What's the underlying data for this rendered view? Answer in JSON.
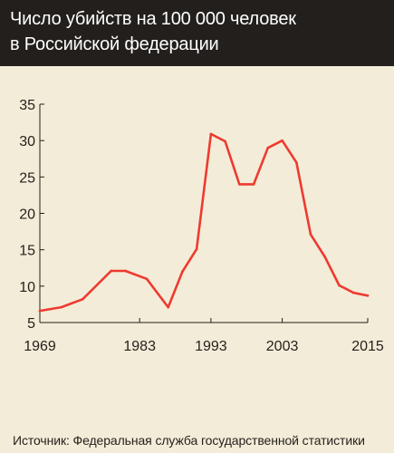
{
  "title": {
    "line1": "Число убийств на 100 000 человек",
    "line2": "в Российской федерации"
  },
  "source_text": "Источник: Федеральная служба государственной статистики",
  "colors": {
    "background": "#f3ecd8",
    "title_bar": "#231f1c",
    "line": "#ee3a2f",
    "axis": "#231f1c"
  },
  "chart_data": {
    "type": "line",
    "title": "Число убийств на 100 000 человек в Российской федерации",
    "xlabel": "",
    "ylabel": "",
    "xlim": [
      1969,
      2015
    ],
    "ylim": [
      5,
      35
    ],
    "y_ticks": [
      5,
      10,
      15,
      20,
      25,
      30,
      35
    ],
    "x_ticks": [
      1969,
      1983,
      1993,
      2003,
      2015
    ],
    "grid": false,
    "x": [
      1969,
      1972,
      1975,
      1979,
      1981,
      1984,
      1987,
      1989,
      1991,
      1993,
      1995,
      1997,
      1999,
      2001,
      2003,
      2005,
      2007,
      2009,
      2011,
      2013,
      2015
    ],
    "values": [
      6.6,
      7.1,
      8.2,
      12.1,
      12.1,
      11.0,
      7.1,
      12.0,
      15.1,
      30.9,
      29.9,
      24.0,
      24.0,
      29.0,
      30.0,
      27.0,
      17.1,
      14.0,
      10.1,
      9.1,
      8.7
    ]
  }
}
